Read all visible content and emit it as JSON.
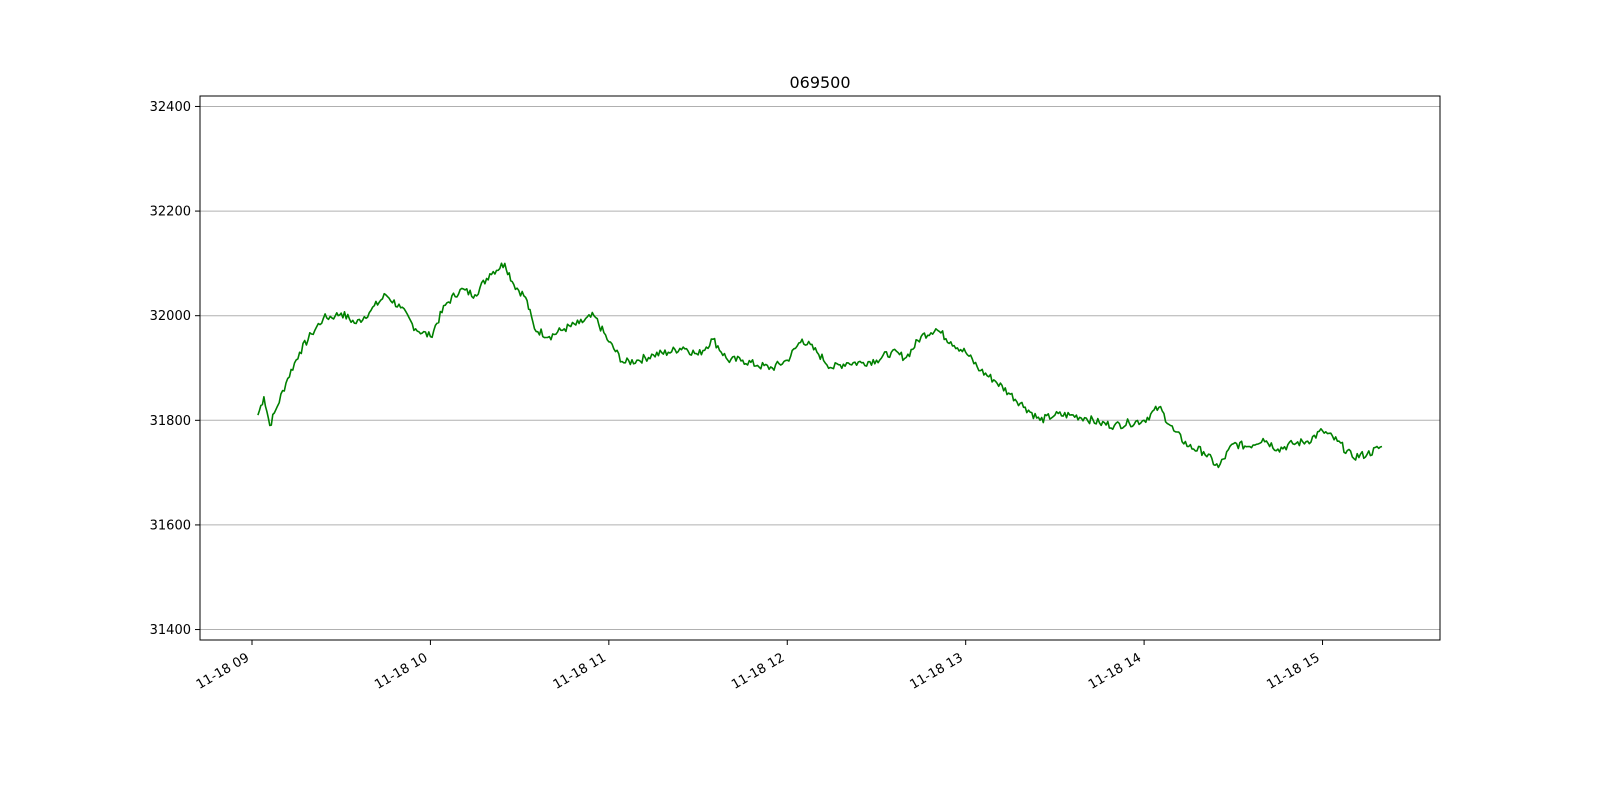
{
  "chart_data": {
    "type": "line",
    "title": "069500",
    "xlabel": "",
    "ylabel": "",
    "x_unit": "time (11-18, hour of day)",
    "xlim": [
      "09:00",
      "15:20"
    ],
    "ylim": [
      31380,
      32420
    ],
    "grid": {
      "y": true,
      "x": false
    },
    "x_ticks": [
      "11-18 09",
      "11-18 10",
      "11-18 11",
      "11-18 12",
      "11-18 13",
      "11-18 14",
      "11-18 15"
    ],
    "y_ticks": [
      "31400",
      "31600",
      "31800",
      "32000",
      "32200",
      "32400"
    ],
    "line_color": "#008000",
    "series": [
      {
        "x": [
          "09:02",
          "09:04",
          "09:06",
          "09:08",
          "09:12",
          "09:16",
          "09:20",
          "09:24",
          "09:28",
          "09:30",
          "09:35",
          "09:40",
          "09:45",
          "09:50",
          "09:55",
          "10:00",
          "10:05",
          "10:10",
          "10:15",
          "10:20",
          "10:25",
          "10:28",
          "10:32",
          "10:35",
          "10:40",
          "10:45",
          "10:50",
          "10:55",
          "11:00",
          "11:05",
          "11:10",
          "11:15",
          "11:20",
          "11:25",
          "11:30",
          "11:35",
          "11:40",
          "11:45",
          "11:50",
          "11:55",
          "12:00",
          "12:05",
          "12:10",
          "12:15",
          "12:20",
          "12:25",
          "12:30",
          "12:35",
          "12:40",
          "12:45",
          "12:50",
          "12:55",
          "13:00",
          "13:05",
          "13:10",
          "13:15",
          "13:20",
          "13:25",
          "13:30",
          "13:35",
          "13:40",
          "13:45",
          "13:50",
          "13:55",
          "14:00",
          "14:05",
          "14:10",
          "14:15",
          "14:20",
          "14:25",
          "14:30",
          "14:35",
          "14:40",
          "14:45",
          "14:50",
          "14:55",
          "15:00",
          "15:05",
          "15:10",
          "15:15",
          "15:20"
        ],
        "y": [
          31810,
          31845,
          31790,
          31820,
          31880,
          31930,
          31965,
          31995,
          32000,
          32005,
          31985,
          32010,
          32040,
          32015,
          31975,
          31960,
          32020,
          32050,
          32040,
          32080,
          32100,
          32060,
          32035,
          31975,
          31960,
          31975,
          31985,
          32000,
          31950,
          31910,
          31915,
          31925,
          31930,
          31940,
          31925,
          31955,
          31915,
          31915,
          31905,
          31900,
          31915,
          31955,
          31930,
          31900,
          31910,
          31910,
          31915,
          31930,
          31920,
          31960,
          31975,
          31950,
          31930,
          31895,
          31875,
          31850,
          31825,
          31800,
          31810,
          31810,
          31805,
          31795,
          31790,
          31795,
          31800,
          31825,
          31780,
          31750,
          31740,
          31710,
          31755,
          31750,
          31765,
          31745,
          31755,
          31760,
          31780,
          31760,
          31730,
          31735,
          31750
        ]
      }
    ]
  }
}
